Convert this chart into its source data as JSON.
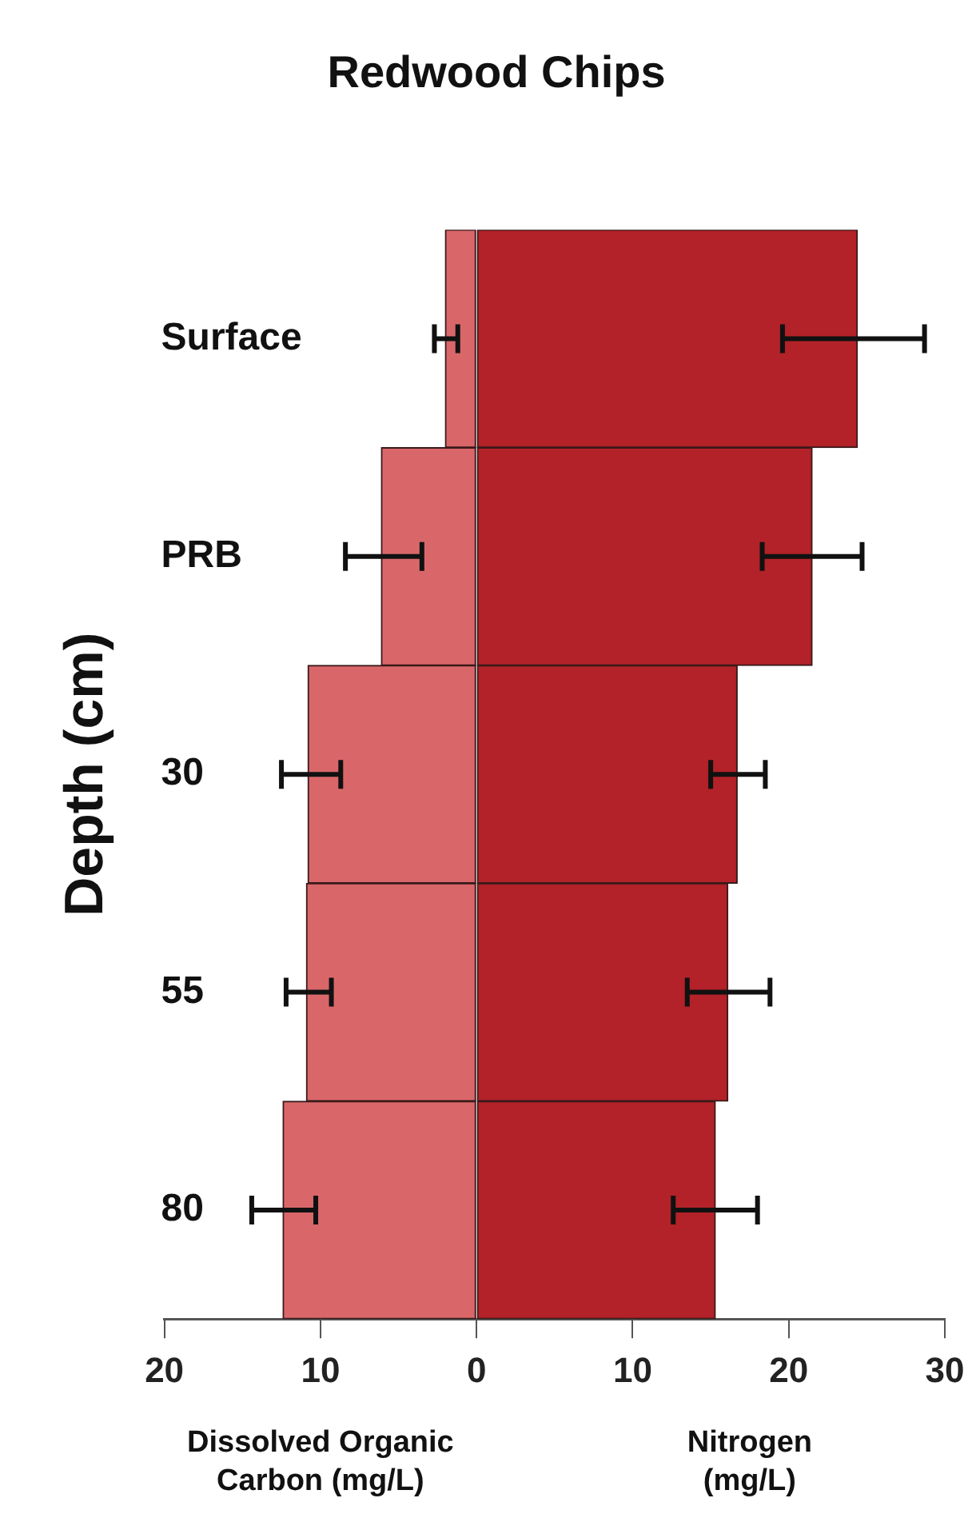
{
  "chart_data": {
    "type": "bar",
    "orientation": "horizontal",
    "stacked": true,
    "title": "Redwood Chips",
    "ylabel": "Depth (cm)",
    "categories": [
      "Surface",
      "PRB",
      "30",
      "55",
      "80"
    ],
    "series": [
      {
        "color": "#d9676a",
        "values": [
          -2.0,
          -6.1,
          -10.8,
          -10.9,
          -12.4
        ],
        "errors": [
          [
            -2.7,
            -1.2
          ],
          [
            -8.4,
            -3.5
          ],
          [
            -12.5,
            -8.7
          ],
          [
            -12.2,
            -9.3
          ],
          [
            -14.4,
            -10.3
          ]
        ]
      },
      {
        "color": "#b22228",
        "values": [
          24.4,
          21.5,
          16.7,
          16.1,
          15.3
        ],
        "errors": [
          [
            19.6,
            28.7
          ],
          [
            18.3,
            24.7
          ],
          [
            15.0,
            18.5
          ],
          [
            13.5,
            18.8
          ],
          [
            12.6,
            18.0
          ]
        ]
      }
    ],
    "xlim": [
      -20,
      30
    ],
    "xticks": [
      {
        "value": -20,
        "label": "20"
      },
      {
        "value": -10,
        "label": "10"
      },
      0,
      10,
      20,
      30
    ],
    "annotations": [
      "Dissolved Organic Carbon (mg/L)",
      "Nitrogen (mg/L)"
    ],
    "grid": false,
    "legend": false
  }
}
